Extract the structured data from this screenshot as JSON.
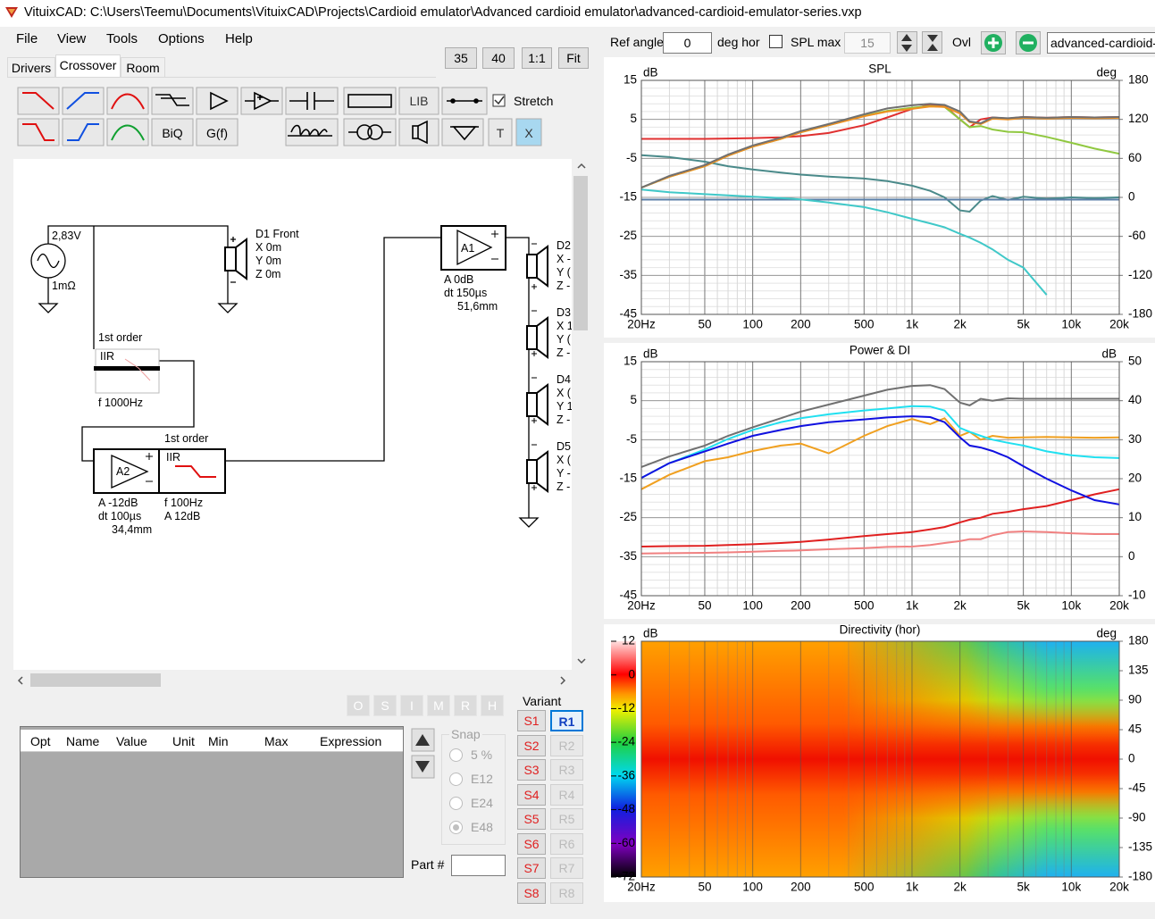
{
  "window": {
    "title": "VituixCAD: C:\\Users\\Teemu\\Documents\\VituixCAD\\Projects\\Cardioid emulator\\Advanced cardioid emulator\\advanced-cardioid-emulator-series.vxp"
  },
  "menu": [
    "File",
    "View",
    "Tools",
    "Options",
    "Help"
  ],
  "tabs": [
    "Drivers",
    "Crossover",
    "Room"
  ],
  "zoom_buttons": [
    "35",
    "40",
    "1:1",
    "Fit"
  ],
  "toolbar": {
    "lib": "LIB",
    "biq": "BiQ",
    "gf": "G(f)",
    "t": "T",
    "x": "X",
    "stretch": "Stretch"
  },
  "schematic": {
    "source": {
      "voltage": "2,83V",
      "resistance": "1mΩ"
    },
    "d1": [
      "D1 Front",
      "X 0m",
      "Y 0m",
      "Z 0m"
    ],
    "filter1": {
      "order": "1st order",
      "type": "IIR",
      "params": [
        "f  1000Hz"
      ]
    },
    "a2": {
      "label": "A2",
      "lines": [
        "A  -12dB",
        "dt 100µs",
        "34,4mm"
      ]
    },
    "filter2": {
      "order": "1st order",
      "type": "IIR",
      "params": [
        "f  100Hz",
        "A  12dB"
      ]
    },
    "a1": {
      "label": "A1",
      "lines": [
        "A  0dB",
        "dt 150µs",
        "51,6mm"
      ]
    },
    "drivers": [
      {
        "name": "D2",
        "lines": [
          "X -",
          "Y (",
          "Z -"
        ]
      },
      {
        "name": "D3",
        "lines": [
          "X 1",
          "Y (",
          "Z -"
        ]
      },
      {
        "name": "D4",
        "lines": [
          "X (",
          "Y 1",
          "Z -"
        ]
      },
      {
        "name": "D5",
        "lines": [
          "X (",
          "Y -",
          "Z -"
        ]
      }
    ]
  },
  "part_buttons": [
    "O",
    "S",
    "I",
    "M",
    "R",
    "H"
  ],
  "table_columns": [
    "Opt",
    "Name",
    "Value",
    "Unit",
    "Min",
    "Max",
    "Expression"
  ],
  "snap": {
    "title": "Snap",
    "options": [
      "5 %",
      "E12",
      "E24",
      "E48"
    ]
  },
  "part_label": "Part #",
  "variant": {
    "title": "Variant",
    "s": [
      "S1",
      "S2",
      "S3",
      "S4",
      "S5",
      "S6",
      "S7",
      "S8"
    ],
    "r": [
      "R1",
      "R2",
      "R3",
      "R4",
      "R5",
      "R6",
      "R7",
      "R8"
    ]
  },
  "controls": {
    "ref_angle_label": "Ref angle",
    "ref_angle": "0",
    "deg_hor": "deg hor",
    "spl_max": "SPL max",
    "spl_max_value": "15",
    "ovl": "Ovl",
    "dropdown": "advanced-cardioid-e"
  },
  "charts": [
    {
      "type": "line",
      "title": "SPL",
      "y_label": "dB",
      "y2_label": "deg",
      "xlim": [
        20,
        20000
      ],
      "xticks": [
        {
          "value": 20,
          "label": "20Hz"
        },
        50,
        100,
        200,
        500,
        {
          "value": 1000,
          "label": "1k"
        },
        {
          "value": 2000,
          "label": "2k"
        },
        {
          "value": 5000,
          "label": "5k"
        },
        {
          "value": 10000,
          "label": "10k"
        },
        {
          "value": 20000,
          "label": "20k"
        }
      ],
      "ylim": [
        -45,
        15
      ],
      "yticks": [
        15,
        5,
        -5,
        -15,
        -25,
        -35,
        -45
      ],
      "y2lim": [
        -180,
        180
      ],
      "y2ticks": [
        180,
        120,
        60,
        0,
        -60,
        -120,
        -180
      ],
      "x": [
        20,
        30,
        50,
        70,
        100,
        150,
        200,
        300,
        500,
        700,
        1000,
        1300,
        1600,
        2000,
        2300,
        2700,
        3200,
        4000,
        5000,
        7000,
        10000,
        14000,
        20000
      ],
      "series": [
        {
          "color": "#e03030",
          "values": [
            0,
            0,
            0,
            0.1,
            0.2,
            0.4,
            0.7,
            1.5,
            3.5,
            5.5,
            7.7,
            8.8,
            8.5,
            5,
            3,
            5,
            5.5,
            5.2,
            5.6,
            5.4,
            5.6,
            5.5,
            5.6
          ]
        },
        {
          "color": "#4a8a8a",
          "axis": "y2",
          "values": [
            65,
            62,
            55,
            48,
            43,
            38,
            35,
            32,
            29,
            25,
            18,
            10,
            0,
            -20,
            -22,
            -5,
            2,
            -4,
            1,
            -2,
            0,
            -1,
            0
          ]
        },
        {
          "color": "#5b7fa8",
          "axis": "y2",
          "values": [
            -3.5,
            -3.5,
            -3.5,
            -3.5,
            -3.5,
            -3.5,
            -3.5,
            -3.5,
            -3.5,
            -3.5,
            -3.5,
            -3.5,
            -3.5,
            -3.5,
            -3.5,
            -3.5,
            -3.5,
            -3.5,
            -3.5,
            -3.5,
            -3.5,
            -3.5,
            -3.5
          ]
        },
        {
          "color": "#40c8c8",
          "axis": "y2",
          "values": [
            12,
            8,
            5,
            3,
            1,
            -1,
            -3,
            -8,
            -15,
            -23,
            -33,
            -40,
            -46,
            -56,
            -62,
            -70,
            -80,
            -96,
            -108,
            -150,
            null,
            null,
            null
          ]
        },
        {
          "color": "#90c840",
          "values": [
            -12.5,
            -9.7,
            -7,
            -4.3,
            -2,
            0,
            1.7,
            3.5,
            5.9,
            7.2,
            8,
            8.4,
            8.2,
            5,
            3,
            3.3,
            2.4,
            1.8,
            1.7,
            0.5,
            -1,
            -2.5,
            -3.8
          ]
        },
        {
          "color": "#f09020",
          "values": [
            -12.5,
            -9.7,
            -7,
            -4.3,
            -2,
            0,
            1.7,
            3.5,
            5.8,
            7,
            7.7,
            8.3,
            8.2,
            6.5,
            4.3,
            3.8,
            5.2,
            5,
            5.4,
            5.2,
            5.4,
            5.3,
            5.4
          ]
        },
        {
          "color": "#707070",
          "values": [
            -12.5,
            -9.5,
            -6.7,
            -4,
            -1.7,
            0.3,
            2,
            3.8,
            6.3,
            7.8,
            8.6,
            9,
            8.7,
            7,
            4.5,
            4,
            5.5,
            5.3,
            5.6,
            5.4,
            5.6,
            5.5,
            5.6
          ]
        }
      ]
    },
    {
      "type": "line",
      "title": "Power & DI",
      "y_label": "dB",
      "y2_label": "dB",
      "xlim": [
        20,
        20000
      ],
      "xticks": [
        {
          "value": 20,
          "label": "20Hz"
        },
        50,
        100,
        200,
        500,
        {
          "value": 1000,
          "label": "1k"
        },
        {
          "value": 2000,
          "label": "2k"
        },
        {
          "value": 5000,
          "label": "5k"
        },
        {
          "value": 10000,
          "label": "10k"
        },
        {
          "value": 20000,
          "label": "20k"
        }
      ],
      "ylim": [
        -45,
        15
      ],
      "yticks": [
        15,
        5,
        -5,
        -15,
        -25,
        -35,
        -45
      ],
      "y2lim": [
        -10,
        50
      ],
      "y2ticks": [
        50,
        40,
        30,
        20,
        10,
        0,
        -10
      ],
      "x": [
        20,
        30,
        50,
        70,
        100,
        150,
        200,
        300,
        500,
        700,
        1000,
        1300,
        1600,
        2000,
        2300,
        2700,
        3200,
        4000,
        5000,
        7000,
        10000,
        14000,
        20000
      ],
      "series": [
        {
          "color": "#f08080",
          "axis": "y2",
          "values": [
            0.8,
            0.9,
            1,
            1.1,
            1.3,
            1.5,
            1.6,
            1.9,
            2.2,
            2.5,
            2.6,
            3,
            3.5,
            4,
            4.5,
            4.5,
            5.5,
            6.3,
            6.5,
            6.3,
            6,
            5.8,
            5.8
          ]
        },
        {
          "color": "#e02020",
          "axis": "y2",
          "values": [
            2.6,
            2.7,
            2.8,
            3,
            3.2,
            3.5,
            3.8,
            4.4,
            5.3,
            5.8,
            6.3,
            7,
            7.6,
            8.8,
            9.5,
            10,
            11,
            11.5,
            12.2,
            13,
            14.5,
            16,
            17.3
          ]
        },
        {
          "color": "#f0a020",
          "values": [
            -17.7,
            -14,
            -10.5,
            -9.5,
            -7.9,
            -6.5,
            -6,
            -8.5,
            -4,
            -1.5,
            0.3,
            -1,
            0.5,
            -4,
            -3,
            -5,
            -4,
            -4.5,
            -4.4,
            -4.3,
            -4.4,
            -4.5,
            -4.4
          ]
        },
        {
          "color": "#707070",
          "values": [
            -12,
            -9.3,
            -6.5,
            -4,
            -1.8,
            0.5,
            2.2,
            4,
            6.3,
            7.8,
            8.8,
            9,
            8,
            4.5,
            3.8,
            5.5,
            5,
            5.6,
            5.5,
            5.5,
            5.5,
            5.5,
            5.5
          ]
        },
        {
          "color": "#20e0f0",
          "values": [
            -14.8,
            -11,
            -7.5,
            -4.8,
            -2.5,
            -0.5,
            0.5,
            1.5,
            2.5,
            3,
            3.6,
            3.5,
            2.5,
            -2,
            -3,
            -4,
            -5,
            -5.8,
            -6.5,
            -8,
            -9,
            -9.5,
            -9.7
          ]
        },
        {
          "color": "#1010e0",
          "values": [
            -14.8,
            -11,
            -8,
            -6,
            -4,
            -2.5,
            -1.5,
            -0.5,
            0.2,
            0.7,
            1,
            0.8,
            -0.5,
            -4.4,
            -6.5,
            -7,
            -7.9,
            -9.5,
            -11.8,
            -15,
            -18,
            -20.5,
            -21.6
          ]
        }
      ]
    },
    {
      "type": "heatmap",
      "title": "Directivity (hor)",
      "y_label": "dB",
      "y2_label": "deg",
      "xlim": [
        20,
        20000
      ],
      "xticks": [
        {
          "value": 20,
          "label": "20Hz"
        },
        50,
        100,
        200,
        500,
        {
          "value": 1000,
          "label": "1k"
        },
        {
          "value": 2000,
          "label": "2k"
        },
        {
          "value": 5000,
          "label": "5k"
        },
        {
          "value": 10000,
          "label": "10k"
        },
        {
          "value": 20000,
          "label": "20k"
        }
      ],
      "ylim": [
        -72,
        12
      ],
      "yticks": [
        12,
        0,
        -12,
        -24,
        -36,
        -48,
        -60,
        -72
      ],
      "y2lim": [
        -180,
        180
      ],
      "y2ticks": [
        180,
        135,
        90,
        45,
        0,
        -45,
        -90,
        -135,
        -180
      ]
    }
  ]
}
